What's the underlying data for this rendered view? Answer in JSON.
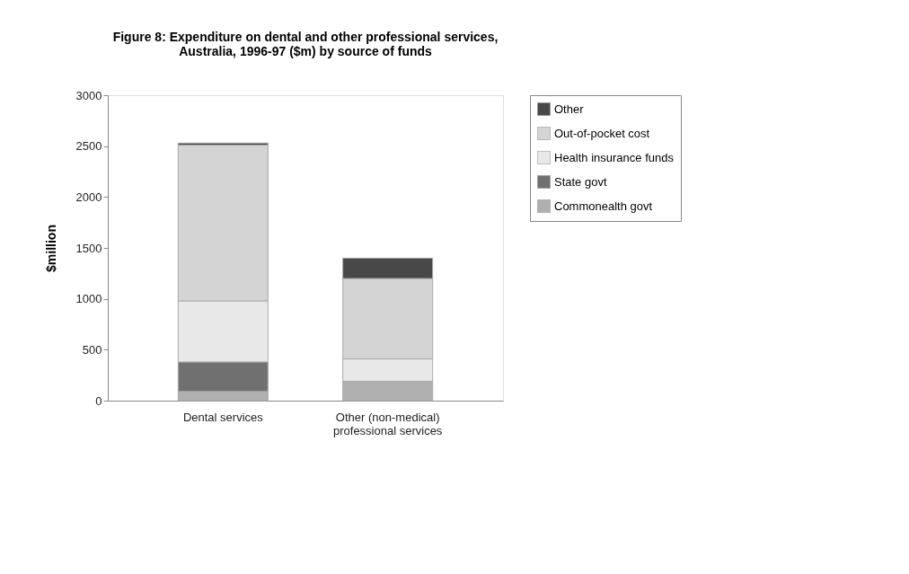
{
  "chart_data": {
    "type": "bar",
    "title": [
      "Figure 8:  Expenditure on dental and other professional services,",
      "Australia, 1996-97 ($m) by source of funds"
    ],
    "ylabel": "$million",
    "categories": [
      "Dental services",
      "Other (non-medical) professional services"
    ],
    "stacked": true,
    "series": [
      {
        "name": "Commonealth govt",
        "color": "#b0b0b0",
        "values": [
          90,
          190
        ]
      },
      {
        "name": "State govt",
        "color": "#707070",
        "values": [
          290,
          0
        ]
      },
      {
        "name": "Health insurance funds",
        "color": "#e8e8e8",
        "values": [
          600,
          220
        ]
      },
      {
        "name": "Out-of-pocket cost",
        "color": "#d4d4d4",
        "values": [
          1530,
          790
        ]
      },
      {
        "name": "Other",
        "color": "#484848",
        "values": [
          20,
          200
        ]
      }
    ],
    "ylim": [
      0,
      3000
    ],
    "yticks": [
      0,
      500,
      1000,
      1500,
      2000,
      2500,
      3000
    ],
    "grid": false,
    "legend": "right"
  }
}
